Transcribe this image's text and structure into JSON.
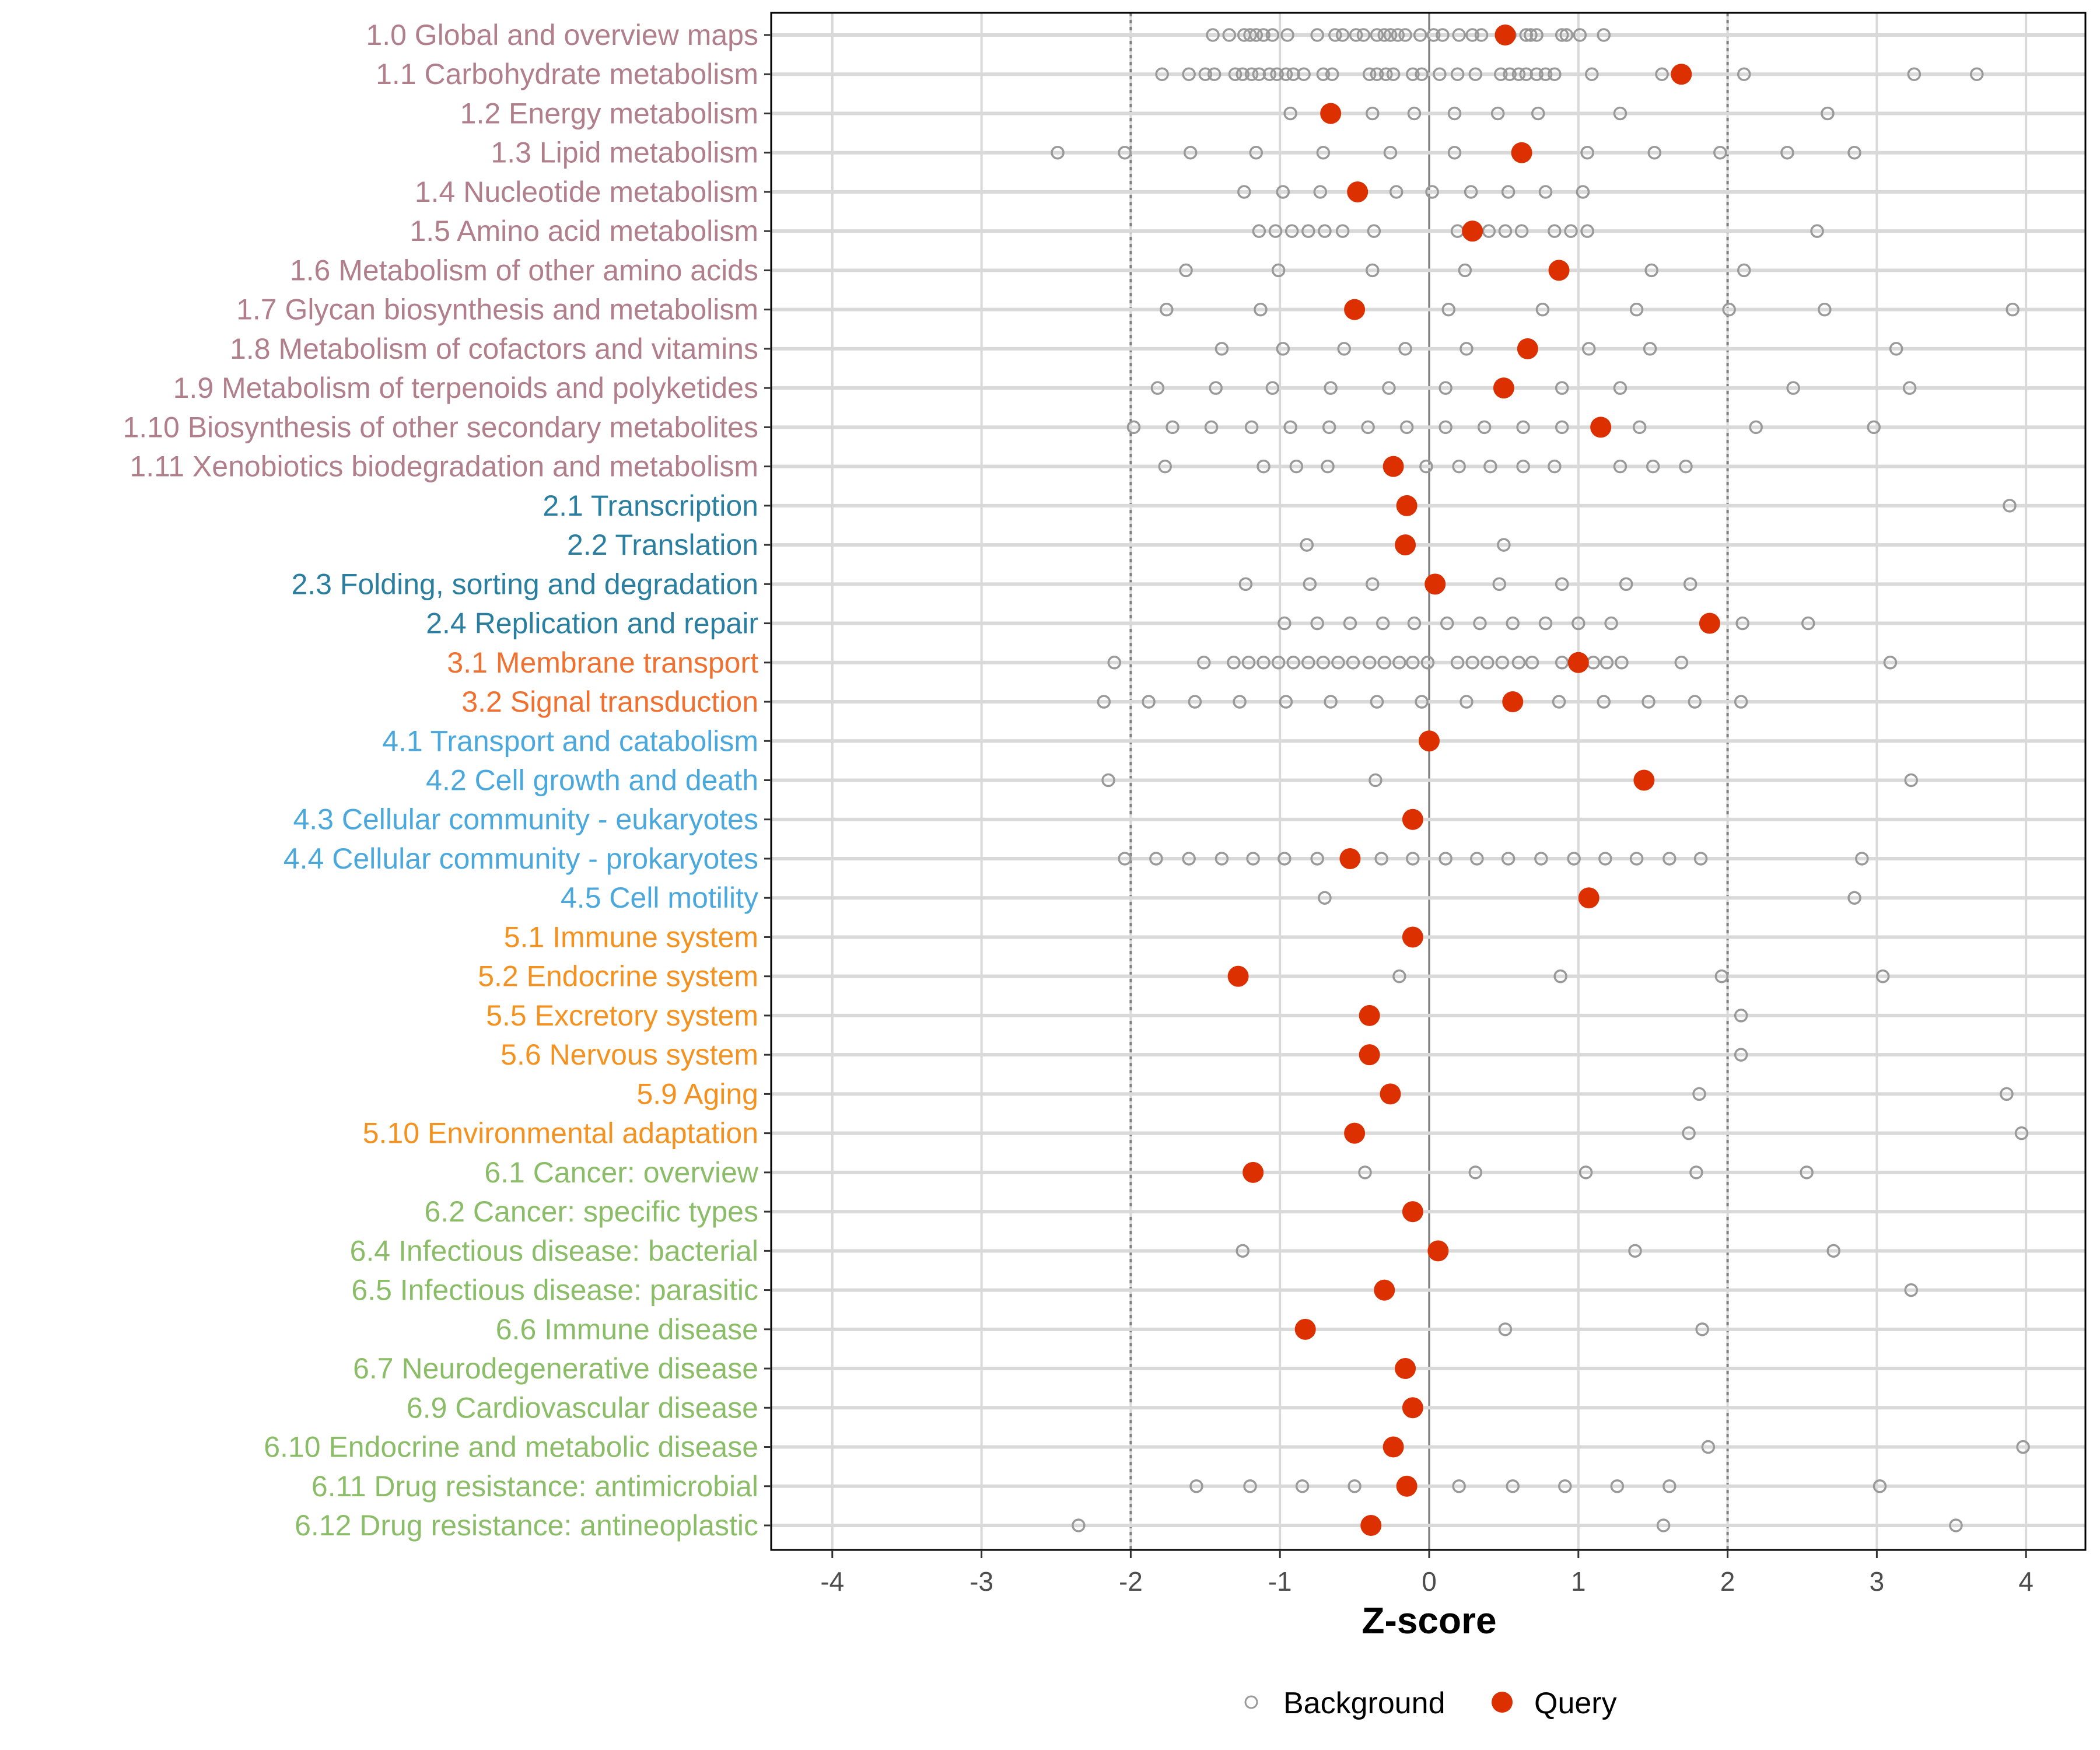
{
  "chart_data": {
    "type": "scatter",
    "xlabel": "Z-score",
    "ylabel": "",
    "xlim": [
      -4.5,
      4.5
    ],
    "xticks": [
      "-4",
      "-3",
      "-2",
      "-1",
      "0",
      "1",
      "2",
      "3",
      "4"
    ],
    "reference_lines": {
      "solid": [
        0
      ],
      "dotted": [
        -2,
        2
      ]
    },
    "grid": true,
    "legend": {
      "placement": "bottom",
      "entries": [
        "Background",
        "Query"
      ]
    },
    "colors": {
      "background": "#999999",
      "query": "#dd3000",
      "group1": "#b07f8b",
      "group2": "#2a7fa0",
      "group3": "#f07030",
      "group4": "#4aa8dc",
      "group5": "#f39220",
      "group6": "#8bbd68"
    },
    "categories": [
      {
        "label": "1.0 Global and overview maps",
        "group": "group1",
        "query": 0.51,
        "background": [
          -1.45,
          -1.34,
          -1.24,
          -1.2,
          -1.16,
          -1.11,
          -1.05,
          -0.95,
          -0.75,
          -0.63,
          -0.58,
          -0.49,
          -0.44,
          -0.35,
          -0.3,
          -0.26,
          -0.21,
          -0.16,
          -0.06,
          0.03,
          0.09,
          0.2,
          0.29,
          0.35,
          0.54,
          0.65,
          0.68,
          0.72,
          0.89,
          0.92,
          1.01,
          1.17
        ]
      },
      {
        "label": "1.1 Carbohydrate metabolism",
        "group": "group1",
        "query": 1.69,
        "background": [
          -1.79,
          -1.61,
          -1.5,
          -1.44,
          -1.3,
          -1.25,
          -1.19,
          -1.14,
          -1.07,
          -1.02,
          -0.96,
          -0.91,
          -0.84,
          -0.71,
          -0.65,
          -0.4,
          -0.35,
          -0.29,
          -0.24,
          -0.11,
          -0.05,
          0.07,
          0.19,
          0.31,
          0.48,
          0.54,
          0.6,
          0.65,
          0.72,
          0.78,
          0.84,
          1.09,
          1.56,
          2.11,
          3.25,
          3.67
        ]
      },
      {
        "label": "1.2 Energy metabolism",
        "group": "group1",
        "query": -0.66,
        "background": [
          -0.93,
          -0.38,
          -0.1,
          0.17,
          0.46,
          0.73,
          1.28,
          2.67
        ]
      },
      {
        "label": "1.3 Lipid metabolism",
        "group": "group1",
        "query": 0.62,
        "background": [
          -2.49,
          -2.04,
          -1.6,
          -1.16,
          -0.71,
          -0.26,
          0.17,
          1.06,
          1.51,
          1.95,
          2.4,
          2.85
        ]
      },
      {
        "label": "1.4 Nucleotide metabolism",
        "group": "group1",
        "query": -0.48,
        "background": [
          -1.24,
          -0.98,
          -0.73,
          -0.22,
          0.02,
          0.28,
          0.53,
          0.78,
          1.03
        ]
      },
      {
        "label": "1.5 Amino acid metabolism",
        "group": "group1",
        "query": 0.29,
        "background": [
          -1.14,
          -1.03,
          -0.92,
          -0.81,
          -0.7,
          -0.58,
          -0.37,
          0.19,
          0.4,
          0.51,
          0.62,
          0.84,
          0.95,
          1.06,
          2.6
        ]
      },
      {
        "label": "1.6 Metabolism of other amino acids",
        "group": "group1",
        "query": 0.87,
        "background": [
          -1.63,
          -1.01,
          -0.38,
          0.24,
          1.49,
          2.11
        ]
      },
      {
        "label": "1.7 Glycan biosynthesis and metabolism",
        "group": "group1",
        "query": -0.5,
        "background": [
          -1.76,
          -1.13,
          0.13,
          0.76,
          1.39,
          2.01,
          2.65,
          3.91
        ]
      },
      {
        "label": "1.8 Metabolism of cofactors and vitamins",
        "group": "group1",
        "query": 0.66,
        "background": [
          -1.39,
          -0.98,
          -0.57,
          -0.16,
          0.25,
          1.07,
          1.48,
          3.13
        ]
      },
      {
        "label": "1.9 Metabolism of terpenoids and polyketides",
        "group": "group1",
        "query": 0.5,
        "background": [
          -1.82,
          -1.43,
          -1.05,
          -0.66,
          -0.27,
          0.11,
          0.89,
          1.28,
          2.44,
          3.22
        ]
      },
      {
        "label": "1.10 Biosynthesis of other secondary metabolites",
        "group": "group1",
        "query": 1.15,
        "background": [
          -1.98,
          -1.72,
          -1.46,
          -1.19,
          -0.93,
          -0.67,
          -0.41,
          -0.15,
          0.11,
          0.37,
          0.63,
          0.89,
          1.41,
          2.19,
          2.98
        ]
      },
      {
        "label": "1.11 Xenobiotics biodegradation and metabolism",
        "group": "group1",
        "query": -0.24,
        "background": [
          -1.77,
          -1.11,
          -0.89,
          -0.68,
          -0.02,
          0.2,
          0.41,
          0.63,
          0.84,
          1.28,
          1.5,
          1.72
        ]
      },
      {
        "label": "2.1 Transcription",
        "group": "group2",
        "query": -0.15,
        "background": [
          3.89
        ]
      },
      {
        "label": "2.2 Translation",
        "group": "group2",
        "query": -0.16,
        "background": [
          -0.82,
          0.5
        ]
      },
      {
        "label": "2.3 Folding, sorting and degradation",
        "group": "group2",
        "query": 0.04,
        "background": [
          -1.23,
          -0.8,
          -0.38,
          0.47,
          0.89,
          1.32,
          1.75
        ]
      },
      {
        "label": "2.4 Replication and repair",
        "group": "group2",
        "query": 1.88,
        "background": [
          -0.97,
          -0.75,
          -0.53,
          -0.31,
          -0.1,
          0.12,
          0.34,
          0.56,
          0.78,
          1.0,
          1.22,
          2.1,
          2.54
        ]
      },
      {
        "label": "3.1 Membrane transport",
        "group": "group3",
        "query": 1.0,
        "background": [
          -2.11,
          -1.51,
          -1.31,
          -1.21,
          -1.11,
          -1.01,
          -0.91,
          -0.81,
          -0.71,
          -0.61,
          -0.51,
          -0.4,
          -0.3,
          -0.2,
          -0.11,
          -0.01,
          0.19,
          0.29,
          0.39,
          0.49,
          0.6,
          0.69,
          0.89,
          1.1,
          1.19,
          1.29,
          1.69,
          3.09
        ]
      },
      {
        "label": "3.2 Signal transduction",
        "group": "group3",
        "query": 0.56,
        "background": [
          -2.18,
          -1.88,
          -1.57,
          -1.27,
          -0.96,
          -0.66,
          -0.35,
          -0.05,
          0.25,
          0.87,
          1.17,
          1.47,
          1.78,
          2.09
        ]
      },
      {
        "label": "4.1 Transport and catabolism",
        "group": "group4",
        "query": 0.0,
        "background": []
      },
      {
        "label": "4.2 Cell growth and death",
        "group": "group4",
        "query": 1.44,
        "background": [
          -2.15,
          -0.36,
          3.23
        ]
      },
      {
        "label": "4.3 Cellular community - eukaryotes",
        "group": "group4",
        "query": -0.11,
        "background": []
      },
      {
        "label": "4.4 Cellular community - prokaryotes",
        "group": "group4",
        "query": -0.53,
        "background": [
          -2.04,
          -1.83,
          -1.61,
          -1.39,
          -1.18,
          -0.97,
          -0.75,
          -0.32,
          -0.11,
          0.11,
          0.32,
          0.53,
          0.75,
          0.97,
          1.18,
          1.39,
          1.61,
          1.82,
          2.9
        ]
      },
      {
        "label": "4.5 Cell motility",
        "group": "group4",
        "query": 1.07,
        "background": [
          -0.7,
          2.85
        ]
      },
      {
        "label": "5.1 Immune system",
        "group": "group5",
        "query": -0.11,
        "background": []
      },
      {
        "label": "5.2 Endocrine system",
        "group": "group5",
        "query": -1.28,
        "background": [
          -0.2,
          0.88,
          1.96,
          3.04
        ]
      },
      {
        "label": "5.5 Excretory system",
        "group": "group5",
        "query": -0.4,
        "background": [
          2.09
        ]
      },
      {
        "label": "5.6 Nervous system",
        "group": "group5",
        "query": -0.4,
        "background": [
          2.09
        ]
      },
      {
        "label": "5.9 Aging",
        "group": "group5",
        "query": -0.26,
        "background": [
          1.81,
          3.87
        ]
      },
      {
        "label": "5.10 Environmental adaptation",
        "group": "group5",
        "query": -0.5,
        "background": [
          1.74,
          3.97
        ]
      },
      {
        "label": "6.1 Cancer: overview",
        "group": "group6",
        "query": -1.18,
        "background": [
          -0.43,
          0.31,
          1.05,
          1.79,
          2.53
        ]
      },
      {
        "label": "6.2 Cancer: specific types",
        "group": "group6",
        "query": -0.11,
        "background": []
      },
      {
        "label": "6.4 Infectious disease: bacterial",
        "group": "group6",
        "query": 0.06,
        "background": [
          -1.25,
          1.38,
          2.71
        ]
      },
      {
        "label": "6.5 Infectious disease: parasitic",
        "group": "group6",
        "query": -0.3,
        "background": [
          3.23
        ]
      },
      {
        "label": "6.6 Immune disease",
        "group": "group6",
        "query": -0.83,
        "background": [
          0.51,
          1.83
        ]
      },
      {
        "label": "6.7 Neurodegenerative disease",
        "group": "group6",
        "query": -0.16,
        "background": []
      },
      {
        "label": "6.9 Cardiovascular disease",
        "group": "group6",
        "query": -0.11,
        "background": []
      },
      {
        "label": "6.10 Endocrine and metabolic disease",
        "group": "group6",
        "query": -0.24,
        "background": [
          1.87,
          3.98
        ]
      },
      {
        "label": "6.11 Drug resistance: antimicrobial",
        "group": "group6",
        "query": -0.15,
        "background": [
          -1.56,
          -1.2,
          -0.85,
          -0.5,
          0.2,
          0.56,
          0.91,
          1.26,
          1.61,
          3.02
        ]
      },
      {
        "label": "6.12 Drug resistance: antineoplastic",
        "group": "group6",
        "query": -0.39,
        "background": [
          -2.35,
          1.57,
          3.53
        ]
      }
    ]
  }
}
